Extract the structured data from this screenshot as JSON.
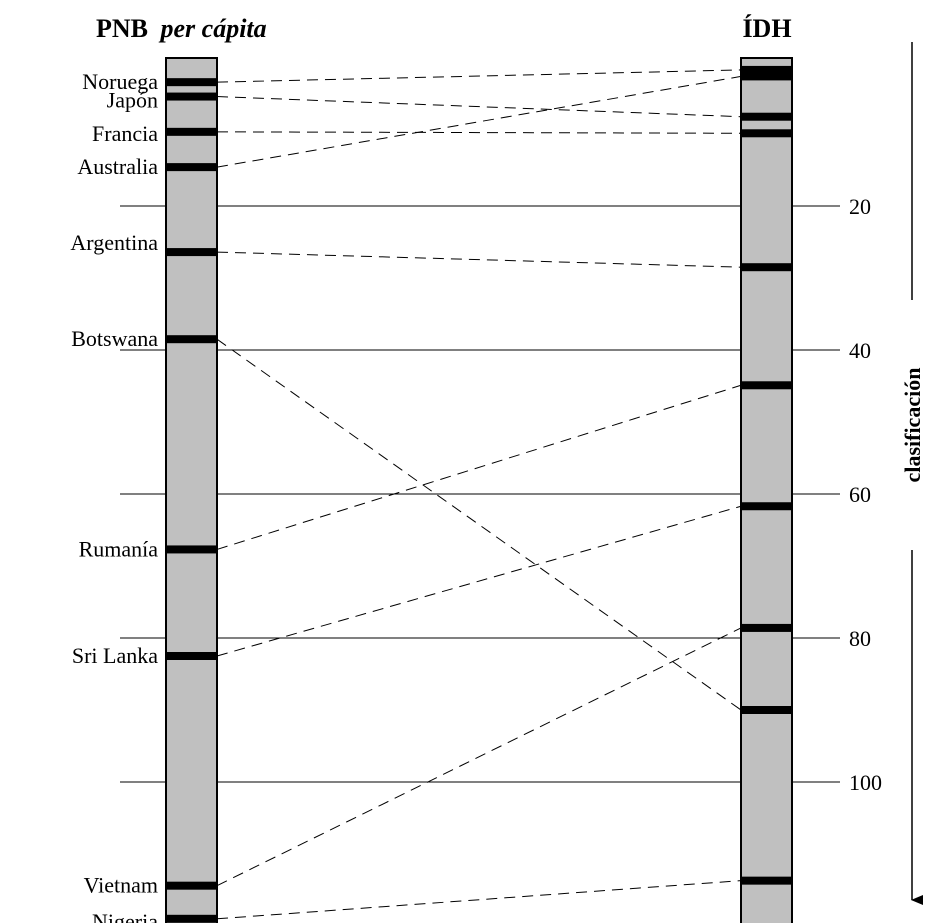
{
  "left_header": {
    "bold": "PNB",
    "italic": "per cápita"
  },
  "right_header": "ÍDH",
  "axis_title": "clasificación",
  "ticks": [
    {
      "rank": 20,
      "label": "20"
    },
    {
      "rank": 40,
      "label": "40"
    },
    {
      "rank": 60,
      "label": "60"
    },
    {
      "rank": 80,
      "label": "80"
    },
    {
      "rank": 100,
      "label": "100"
    }
  ],
  "countries": [
    {
      "name": "Noruega",
      "gnp_rank": 2.8,
      "hdi_rank": 1.1
    },
    {
      "name": "Japón",
      "gnp_rank": 4.8,
      "hdi_rank": 7.6
    },
    {
      "name": "Francia",
      "gnp_rank": 9.7,
      "hdi_rank": 9.9
    },
    {
      "name": "Australia",
      "gnp_rank": 14.6,
      "hdi_rank": 2.0
    },
    {
      "name": "Argentina",
      "gnp_rank": 26.4,
      "hdi_rank": 28.5
    },
    {
      "name": "Botswana",
      "gnp_rank": 38.5,
      "hdi_rank": 90.0
    },
    {
      "name": "Rumanía",
      "gnp_rank": 67.7,
      "hdi_rank": 44.9
    },
    {
      "name": "Sri Lanka",
      "gnp_rank": 82.5,
      "hdi_rank": 61.7
    },
    {
      "name": "Vietnam",
      "gnp_rank": 114.4,
      "hdi_rank": 78.6
    },
    {
      "name": "Nigeria",
      "gnp_rank": 119.0,
      "hdi_rank": 113.7
    }
  ],
  "colors": {
    "column_fill": "#c0c0c0",
    "ink": "#000000"
  }
}
